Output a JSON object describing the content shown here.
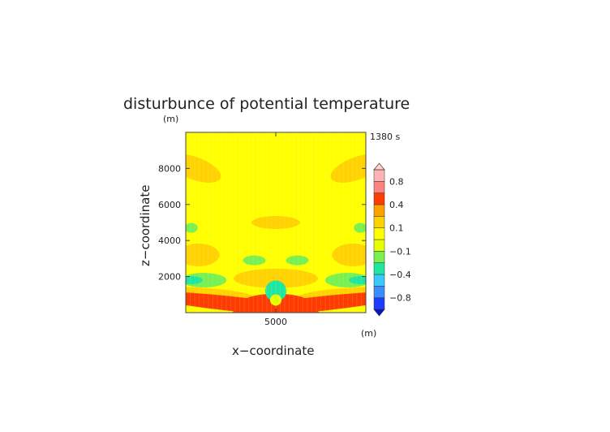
{
  "chart_data": {
    "type": "heatmap",
    "title": "disturbunce of potential temperature",
    "xlabel": "x−coordinate",
    "ylabel": "z−coordinate",
    "x_unit": "(m)",
    "y_unit": "(m)",
    "time_label": "1380 s",
    "xlim": [
      0,
      10000
    ],
    "ylim": [
      0,
      10000
    ],
    "x_ticks": [
      {
        "value": 5000,
        "label": "5000"
      }
    ],
    "y_ticks": [
      {
        "value": 2000,
        "label": "2000"
      },
      {
        "value": 4000,
        "label": "4000"
      },
      {
        "value": 6000,
        "label": "6000"
      },
      {
        "value": 8000,
        "label": "8000"
      }
    ],
    "colorbar": {
      "levels": [
        -1.0,
        -0.8,
        -0.6,
        -0.4,
        -0.25,
        -0.1,
        0,
        0.1,
        0.25,
        0.4,
        0.6,
        0.8,
        1.0
      ],
      "colors": [
        "#1e3cff",
        "#3c8cff",
        "#3cc8ff",
        "#1ee6a0",
        "#78f050",
        "#e6ff00",
        "#ffff00",
        "#ffd200",
        "#ffa000",
        "#ff3c00",
        "#ff8282",
        "#ffb4b4"
      ],
      "under_color": "#0014c8",
      "over_color": "#ffd2d2",
      "tick_labels": [
        {
          "value": 0.8,
          "label": "0.8"
        },
        {
          "value": 0.4,
          "label": "0.4"
        },
        {
          "value": 0.1,
          "label": "0.1"
        },
        {
          "value": -0.1,
          "label": "−0.1"
        },
        {
          "value": -0.4,
          "label": "−0.4"
        },
        {
          "value": -0.8,
          "label": "−0.8"
        }
      ]
    },
    "background_value": 0.05,
    "features": [
      {
        "value": 0.15,
        "x": 500,
        "z": 8000
      },
      {
        "value": 0.15,
        "x": 9500,
        "z": 8000
      },
      {
        "value": 0.15,
        "x": 5000,
        "z": 5000
      },
      {
        "value": -0.15,
        "x": 300,
        "z": 4700
      },
      {
        "value": -0.15,
        "x": 9700,
        "z": 4700
      },
      {
        "value": 0.15,
        "x": 700,
        "z": 3200
      },
      {
        "value": 0.15,
        "x": 9300,
        "z": 3200
      },
      {
        "value": -0.15,
        "x": 3800,
        "z": 2900
      },
      {
        "value": -0.15,
        "x": 6200,
        "z": 2900
      },
      {
        "value": 0.15,
        "x": 5000,
        "z": 1900
      },
      {
        "value": -0.15,
        "x": 1000,
        "z": 1800
      },
      {
        "value": -0.15,
        "x": 9000,
        "z": 1800
      },
      {
        "value": -0.4,
        "x": 300,
        "z": 1800
      },
      {
        "value": -0.4,
        "x": 9700,
        "z": 1800
      },
      {
        "value": 0.15,
        "x": 1000,
        "z": 1100
      },
      {
        "value": 0.15,
        "x": 9000,
        "z": 1100
      },
      {
        "value": 0.4,
        "x": 5000,
        "z": 600
      },
      {
        "value": 0.5,
        "x": 2500,
        "z": 500
      },
      {
        "value": 0.5,
        "x": 7500,
        "z": 500
      },
      {
        "value": -0.35,
        "x": 5000,
        "z": 1200
      },
      {
        "value": -0.1,
        "x": 5000,
        "z": 700
      }
    ]
  }
}
